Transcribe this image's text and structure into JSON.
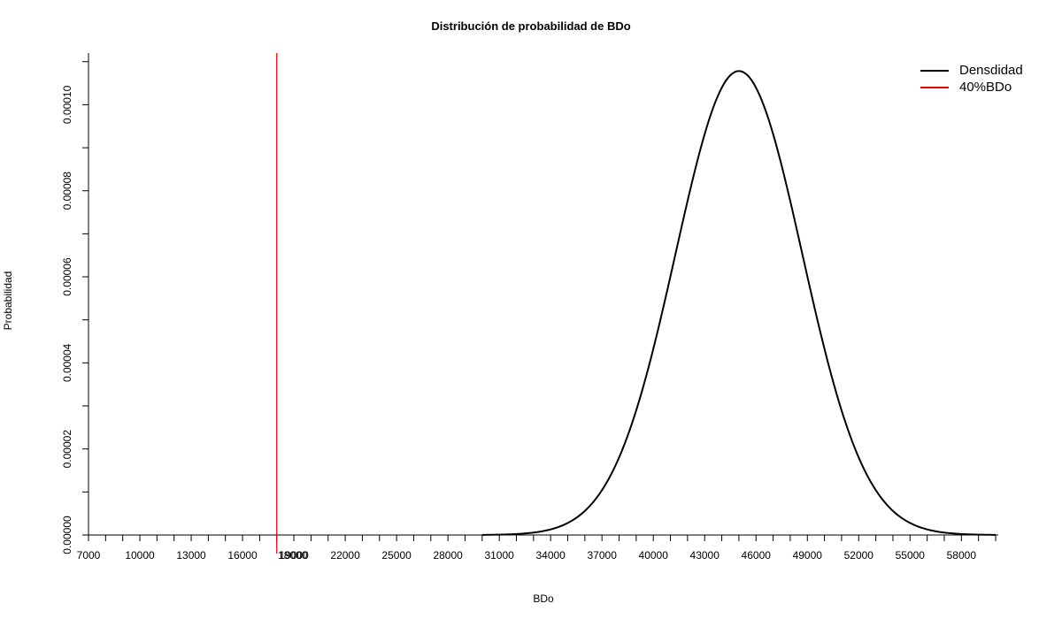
{
  "chart_data": {
    "type": "line",
    "title": "Distribución de probabilidad de BDo",
    "xlabel": "BDo",
    "ylabel": "Probabilidad",
    "xlim": [
      7000,
      60000
    ],
    "ylim": [
      0,
      0.000112
    ],
    "x_major_ticks": [
      7000,
      10000,
      13000,
      16000,
      19000,
      22000,
      25000,
      28000,
      31000,
      34000,
      37000,
      40000,
      43000,
      46000,
      49000,
      52000,
      55000,
      58000
    ],
    "x_minor_step": 1000,
    "y_ticks": [
      0,
      2e-05,
      4e-05,
      6e-05,
      8e-05,
      0.0001
    ],
    "y_tick_labels": [
      "0.00000",
      "0.00002",
      "0.00004",
      "0.00006",
      "0.00008",
      "0.00010"
    ],
    "y_minor_step": 1e-05,
    "series": [
      {
        "name": "Densdidad",
        "color": "#000000",
        "kind": "normal-density",
        "mean": 45000,
        "sd": 3700,
        "x_range": [
          30000,
          60000
        ]
      },
      {
        "name": "40%BDo",
        "color": "#e00000",
        "kind": "vertical-line",
        "x": 18000,
        "value_label": "18000"
      }
    ],
    "legend_position": "top-right",
    "grid": false
  }
}
